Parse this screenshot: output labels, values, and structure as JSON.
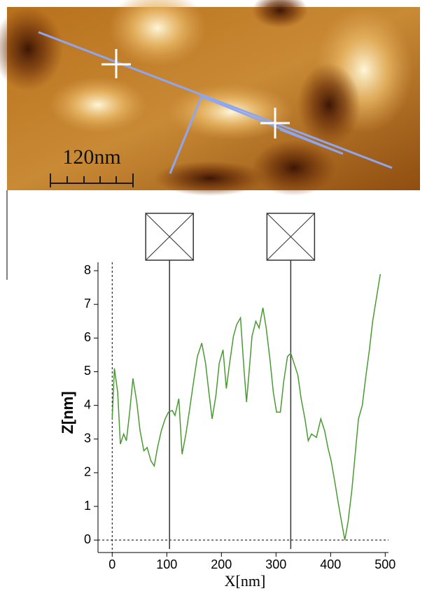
{
  "chart_data": {
    "type": "line",
    "x_label": "X[nm]",
    "y_label": "Z[nm]",
    "annotations": [
      "120nm"
    ],
    "x": [
      0,
      4,
      10,
      15,
      21,
      26,
      32,
      38,
      45,
      51,
      58,
      64,
      71,
      77,
      83,
      90,
      97,
      103,
      110,
      115,
      122,
      128,
      135,
      141,
      149,
      156,
      164,
      171,
      177,
      183,
      190,
      196,
      203,
      209,
      215,
      222,
      228,
      235,
      241,
      246,
      251,
      256,
      263,
      269,
      276,
      282,
      289,
      295,
      301,
      308,
      314,
      321,
      327,
      333,
      340,
      346,
      353,
      359,
      365,
      374,
      382,
      389,
      395,
      401,
      408,
      414,
      421,
      426,
      432,
      439,
      445,
      451,
      458,
      464,
      471,
      477,
      485,
      491
    ],
    "series": [
      {
        "color": "#4a9a32",
        "values": [
          3.6,
          5.1,
          4.4,
          2.85,
          3.15,
          2.95,
          3.8,
          4.8,
          4.1,
          3.25,
          2.65,
          2.75,
          2.35,
          2.2,
          2.75,
          3.25,
          3.6,
          3.8,
          3.85,
          3.7,
          4.2,
          2.55,
          3.15,
          3.8,
          4.7,
          5.45,
          5.85,
          5.25,
          4.4,
          3.6,
          4.3,
          5.25,
          5.65,
          4.5,
          5.25,
          6.05,
          6.4,
          6.6,
          5.15,
          4.1,
          5.05,
          6.05,
          6.5,
          6.3,
          6.9,
          6.3,
          5.35,
          4.4,
          3.8,
          3.8,
          4.7,
          5.45,
          5.55,
          5.25,
          4.9,
          4.2,
          3.6,
          2.95,
          3.15,
          3.05,
          3.6,
          3.25,
          2.75,
          2.35,
          1.7,
          1.1,
          0.45,
          0,
          0.55,
          1.5,
          2.55,
          3.6,
          4.0,
          4.8,
          5.65,
          6.5,
          7.3,
          7.9
        ]
      }
    ],
    "cursors": [
      105,
      327
    ],
    "xlim": [
      -26,
      506
    ],
    "ylim": [
      -0.37,
      8.25
    ],
    "xticks": [
      0,
      100,
      200,
      300,
      400,
      500
    ],
    "yticks": [
      0,
      1,
      2,
      3,
      4,
      5,
      6,
      7,
      8
    ]
  }
}
